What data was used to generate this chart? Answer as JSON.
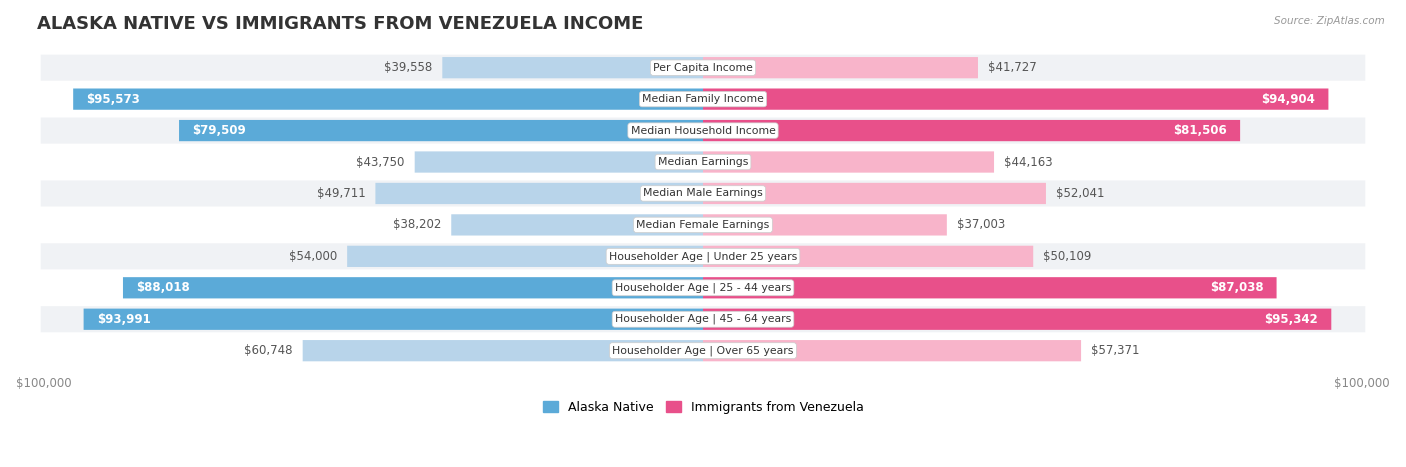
{
  "title": "Alaska Native vs Immigrants from Venezuela Income",
  "source": "Source: ZipAtlas.com",
  "categories": [
    "Per Capita Income",
    "Median Family Income",
    "Median Household Income",
    "Median Earnings",
    "Median Male Earnings",
    "Median Female Earnings",
    "Householder Age | Under 25 years",
    "Householder Age | 25 - 44 years",
    "Householder Age | 45 - 64 years",
    "Householder Age | Over 65 years"
  ],
  "alaska_values": [
    39558,
    95573,
    79509,
    43750,
    49711,
    38202,
    54000,
    88018,
    93991,
    60748
  ],
  "venezuela_values": [
    41727,
    94904,
    81506,
    44163,
    52041,
    37003,
    50109,
    87038,
    95342,
    57371
  ],
  "alaska_labels": [
    "$39,558",
    "$95,573",
    "$79,509",
    "$43,750",
    "$49,711",
    "$38,202",
    "$54,000",
    "$88,018",
    "$93,991",
    "$60,748"
  ],
  "venezuela_labels": [
    "$41,727",
    "$94,904",
    "$81,506",
    "$44,163",
    "$52,041",
    "$37,003",
    "$50,109",
    "$87,038",
    "$95,342",
    "$57,371"
  ],
  "max_value": 100000,
  "alaska_color_light": "#b8d4ea",
  "alaska_color_dark": "#5baad8",
  "venezuela_color_light": "#f8b4ca",
  "venezuela_color_dark": "#e8508a",
  "large_threshold": 75000,
  "row_bg_even": "#f0f2f5",
  "row_bg_odd": "#ffffff",
  "title_fontsize": 13,
  "bar_label_fontsize": 8.5,
  "axis_label_fontsize": 8.5,
  "legend_fontsize": 9,
  "figsize": [
    14.06,
    4.67
  ],
  "dpi": 100
}
